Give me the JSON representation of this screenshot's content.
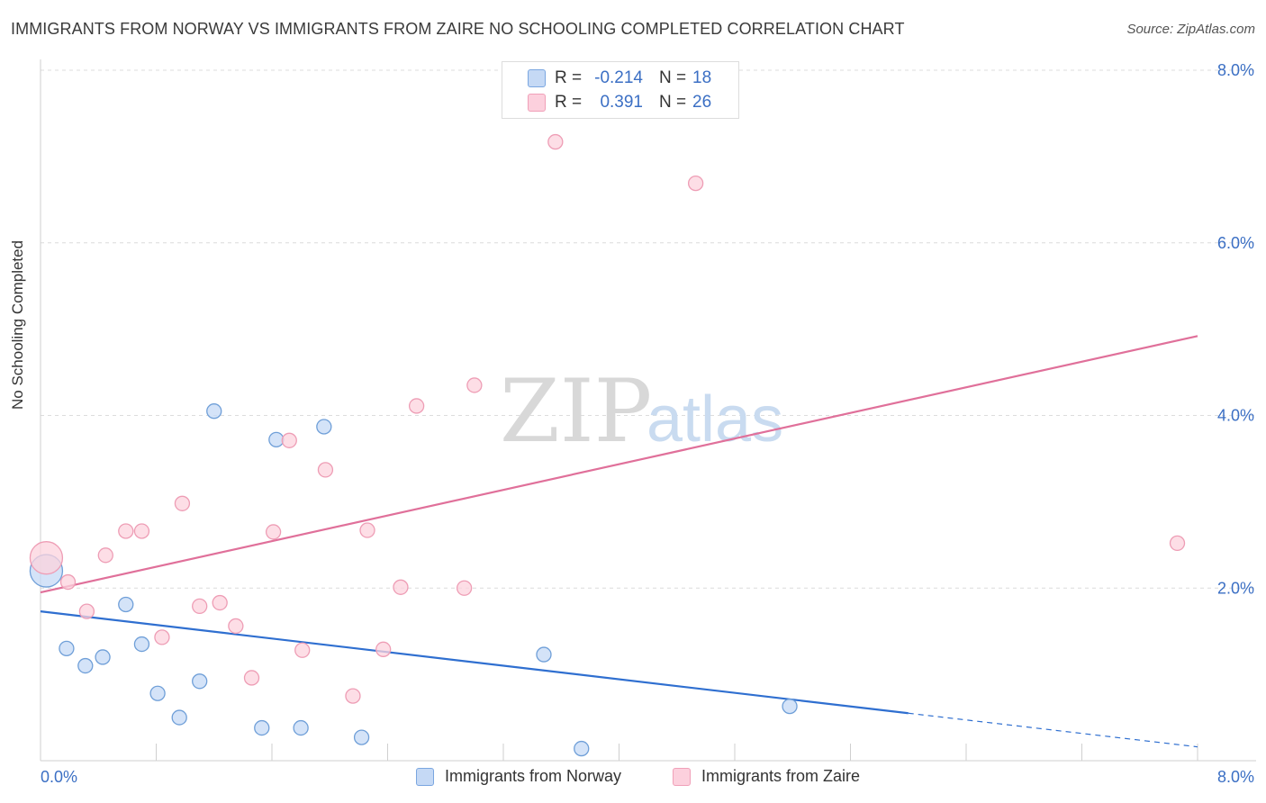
{
  "title": "IMMIGRANTS FROM NORWAY VS IMMIGRANTS FROM ZAIRE NO SCHOOLING COMPLETED CORRELATION CHART",
  "source": "Source: ZipAtlas.com",
  "watermark": {
    "zip": "ZIP",
    "atlas": "atlas"
  },
  "stats": [
    {
      "r_label": "R =",
      "r_value": "-0.214",
      "n_label": "N =",
      "n_value": "18",
      "color": "#7aa6e0",
      "fill": "#c5d9f5"
    },
    {
      "r_label": "R =",
      "r_value": "0.391",
      "n_label": "N =",
      "n_value": "26",
      "color": "#f0a0b8",
      "fill": "#fcd0dd"
    }
  ],
  "legend": {
    "norway": "Immigrants from Norway",
    "zaire": "Immigrants from Zaire"
  },
  "colors": {
    "norway_stroke": "#6f9fd8",
    "norway_fill": "#c5d9f5",
    "norway_line": "#2f6fd0",
    "zaire_stroke": "#ee9db5",
    "zaire_fill": "#fcd3de",
    "zaire_line": "#e0709a",
    "axis_label": "#3b6fc4"
  },
  "chart_data": {
    "type": "scatter",
    "title": "IMMIGRANTS FROM NORWAY VS IMMIGRANTS FROM ZAIRE NO SCHOOLING COMPLETED CORRELATION CHART",
    "xlabel": "",
    "ylabel": "No Schooling Completed",
    "xlim": [
      0,
      8
    ],
    "ylim": [
      0,
      8
    ],
    "x_tick_labels": [
      "0.0%",
      "8.0%"
    ],
    "y_tick_labels": [
      "2.0%",
      "4.0%",
      "6.0%",
      "8.0%"
    ],
    "y_ticks": [
      2,
      4,
      6,
      8
    ],
    "grid": true,
    "series": [
      {
        "name": "Immigrants from Norway",
        "points": [
          {
            "x": 0.04,
            "y": 2.2,
            "large": true
          },
          {
            "x": 0.18,
            "y": 1.3
          },
          {
            "x": 0.31,
            "y": 1.1
          },
          {
            "x": 0.43,
            "y": 1.2
          },
          {
            "x": 0.59,
            "y": 1.81
          },
          {
            "x": 0.7,
            "y": 1.35
          },
          {
            "x": 0.81,
            "y": 0.78
          },
          {
            "x": 0.96,
            "y": 0.5
          },
          {
            "x": 1.1,
            "y": 0.92
          },
          {
            "x": 1.2,
            "y": 4.05
          },
          {
            "x": 1.53,
            "y": 0.38
          },
          {
            "x": 1.63,
            "y": 3.72
          },
          {
            "x": 1.8,
            "y": 0.38
          },
          {
            "x": 1.96,
            "y": 3.87
          },
          {
            "x": 2.22,
            "y": 0.27
          },
          {
            "x": 3.48,
            "y": 1.23
          },
          {
            "x": 3.74,
            "y": 0.14
          },
          {
            "x": 5.18,
            "y": 0.63
          }
        ],
        "trend": {
          "x0": 0,
          "y0": 1.73,
          "x1": 6.0,
          "y1": 0.55,
          "dash_to_x": 8.0,
          "dash_to_y": 0.16
        }
      },
      {
        "name": "Immigrants from Zaire",
        "points": [
          {
            "x": 0.04,
            "y": 2.35,
            "large": true
          },
          {
            "x": 0.19,
            "y": 2.07
          },
          {
            "x": 0.32,
            "y": 1.73
          },
          {
            "x": 0.45,
            "y": 2.38
          },
          {
            "x": 0.59,
            "y": 2.66
          },
          {
            "x": 0.7,
            "y": 2.66
          },
          {
            "x": 0.84,
            "y": 1.43
          },
          {
            "x": 0.98,
            "y": 2.98
          },
          {
            "x": 1.1,
            "y": 1.79
          },
          {
            "x": 1.24,
            "y": 1.83
          },
          {
            "x": 1.35,
            "y": 1.56
          },
          {
            "x": 1.46,
            "y": 0.96
          },
          {
            "x": 1.61,
            "y": 2.65
          },
          {
            "x": 1.72,
            "y": 3.71
          },
          {
            "x": 1.81,
            "y": 1.28
          },
          {
            "x": 1.97,
            "y": 3.37
          },
          {
            "x": 2.16,
            "y": 0.75
          },
          {
            "x": 2.26,
            "y": 2.67
          },
          {
            "x": 2.37,
            "y": 1.29
          },
          {
            "x": 2.49,
            "y": 2.01
          },
          {
            "x": 2.6,
            "y": 4.11
          },
          {
            "x": 2.93,
            "y": 2.0
          },
          {
            "x": 3.0,
            "y": 4.35
          },
          {
            "x": 3.56,
            "y": 7.17
          },
          {
            "x": 4.53,
            "y": 6.69
          },
          {
            "x": 7.86,
            "y": 2.52
          }
        ],
        "trend": {
          "x0": 0,
          "y0": 1.95,
          "x1": 8.0,
          "y1": 4.92
        }
      }
    ]
  }
}
